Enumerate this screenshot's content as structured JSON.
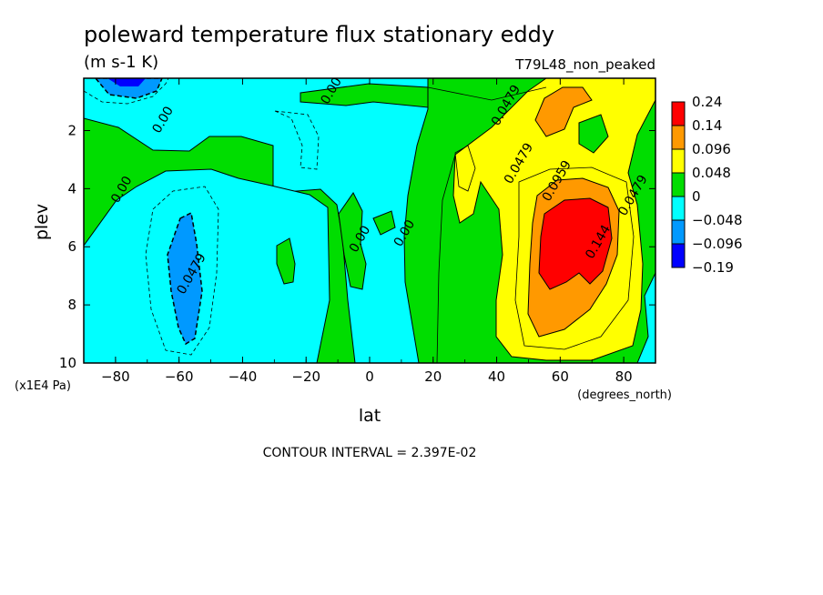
{
  "chart_data": {
    "type": "heatmap",
    "title": "poleward temperature flux stationary eddy",
    "units": "(m s-1 K)",
    "dataset_label": "T79L48_non_peaked",
    "xlabel": "lat",
    "ylabel": "plev",
    "x_unit": "(degrees_north)",
    "y_unit": "(x1E4 Pa)",
    "xlim": [
      -90,
      90
    ],
    "ylim": [
      10,
      0.2
    ],
    "xticks": [
      -80,
      -60,
      -40,
      -20,
      0,
      20,
      40,
      60,
      80
    ],
    "yticks": [
      2,
      4,
      6,
      8,
      10
    ],
    "contour_interval_text": "CONTOUR INTERVAL = 2.397E-02",
    "colorbar": {
      "levels": [
        "0.24",
        "0.14",
        "0.096",
        "0.048",
        "0",
        "−0.048",
        "−0.096",
        "−0.19"
      ],
      "colors": [
        "#ff0000",
        "#ff9900",
        "#ffff00",
        "#00dd00",
        "#00ffff",
        "#0099ff",
        "#0000ff"
      ]
    },
    "contour_labels": [
      {
        "text": "0.00",
        "lat": -64,
        "plev": 1.7
      },
      {
        "text": "0.00",
        "lat": -11,
        "plev": 0.7
      },
      {
        "text": "0.00",
        "lat": -77,
        "plev": 4.1
      },
      {
        "text": "0.0479",
        "lat": -55,
        "plev": 7.0
      },
      {
        "text": "0.00",
        "lat": -2,
        "plev": 5.8
      },
      {
        "text": "0.00",
        "lat": 12,
        "plev": 5.6
      },
      {
        "text": "0.0479",
        "lat": 44,
        "plev": 1.2
      },
      {
        "text": "0.0479",
        "lat": 48,
        "plev": 3.2
      },
      {
        "text": "0.0959",
        "lat": 60,
        "plev": 3.8
      },
      {
        "text": "0.0479",
        "lat": 84,
        "plev": 4.3
      },
      {
        "text": "0.144",
        "lat": 73,
        "plev": 5.9
      }
    ]
  }
}
